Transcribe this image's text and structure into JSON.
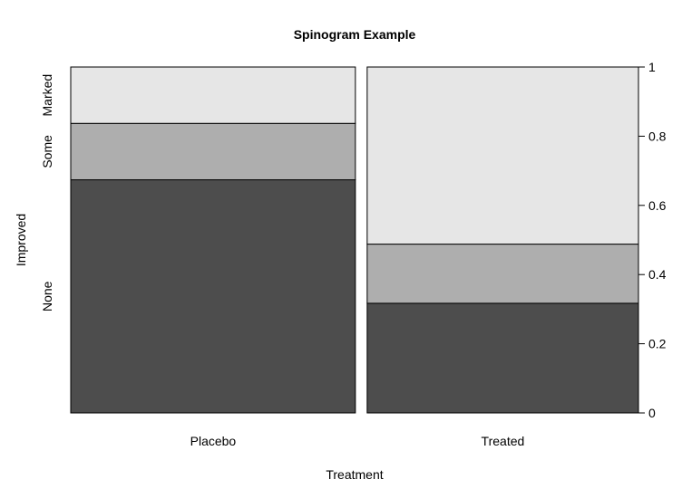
{
  "chart_data": {
    "type": "spinogram",
    "title": "Spinogram Example",
    "xlabel": "Treatment",
    "ylabel": "Improved",
    "categories": [
      "Placebo",
      "Treated"
    ],
    "x_widths": [
      0.512,
      0.488
    ],
    "levels": [
      "None",
      "Some",
      "Marked"
    ],
    "colors": {
      "None": "#4d4d4d",
      "Some": "#aeaeae",
      "Marked": "#e6e6e6"
    },
    "proportions": [
      {
        "category": "Placebo",
        "None": 0.674,
        "Some": 0.163,
        "Marked": 0.163
      },
      {
        "category": "Treated",
        "None": 0.317,
        "Some": 0.171,
        "Marked": 0.512
      }
    ],
    "y_axis_right": {
      "ticks": [
        0,
        0.2,
        0.4,
        0.6,
        0.8,
        1
      ],
      "ylim": [
        0,
        1
      ]
    },
    "grid": false
  }
}
